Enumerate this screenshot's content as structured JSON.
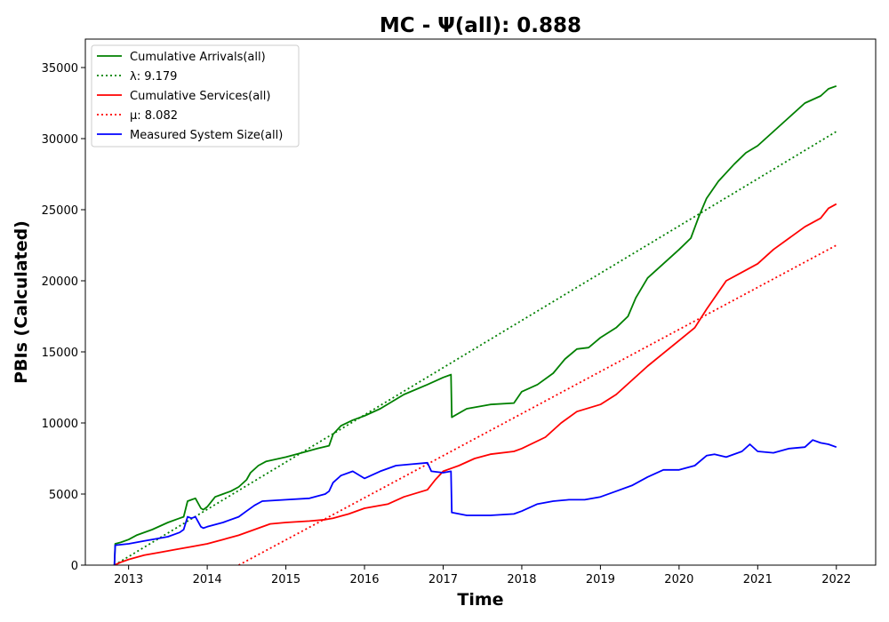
{
  "chart_data": {
    "type": "line",
    "title": "MC -  Ψ(all): 0.888",
    "xlabel": "Time",
    "ylabel": "PBIs (Calculated)",
    "xlim": [
      2012.45,
      2022.5
    ],
    "ylim": [
      0,
      37000
    ],
    "x_ticks": [
      2013,
      2014,
      2015,
      2016,
      2017,
      2018,
      2019,
      2020,
      2021,
      2022
    ],
    "x_tick_labels": [
      "2013",
      "2014",
      "2015",
      "2016",
      "2017",
      "2018",
      "2019",
      "2020",
      "2021",
      "2022"
    ],
    "y_ticks": [
      0,
      5000,
      10000,
      15000,
      20000,
      25000,
      30000,
      35000
    ],
    "y_tick_labels": [
      "0",
      "5000",
      "10000",
      "15000",
      "20000",
      "25000",
      "30000",
      "35000"
    ],
    "legend_position": "top-left",
    "grid": false,
    "series": [
      {
        "name": "Cumulative Arrivals(all)",
        "color": "#008000",
        "style": "solid",
        "x": [
          2012.82,
          2012.83,
          2012.9,
          2013.0,
          2013.1,
          2013.3,
          2013.5,
          2013.65,
          2013.7,
          2013.75,
          2013.8,
          2013.85,
          2013.92,
          2013.95,
          2014.0,
          2014.1,
          2014.2,
          2014.3,
          2014.4,
          2014.5,
          2014.55,
          2014.65,
          2014.75,
          2015.0,
          2015.2,
          2015.4,
          2015.55,
          2015.6,
          2015.7,
          2015.85,
          2016.0,
          2016.2,
          2016.35,
          2016.5,
          2016.8,
          2017.0,
          2017.1,
          2017.11,
          2017.3,
          2017.6,
          2017.9,
          2018.0,
          2018.2,
          2018.4,
          2018.55,
          2018.7,
          2018.85,
          2019.0,
          2019.2,
          2019.35,
          2019.45,
          2019.6,
          2019.8,
          2020.0,
          2020.15,
          2020.25,
          2020.35,
          2020.5,
          2020.7,
          2020.85,
          2021.0,
          2021.2,
          2021.4,
          2021.6,
          2021.8,
          2021.9,
          2022.0
        ],
        "y": [
          0,
          1500,
          1600,
          1800,
          2100,
          2500,
          3000,
          3300,
          3400,
          4500,
          4600,
          4700,
          4000,
          3900,
          4100,
          4800,
          5000,
          5200,
          5500,
          6000,
          6500,
          7000,
          7300,
          7600,
          7900,
          8200,
          8400,
          9200,
          9800,
          10200,
          10500,
          11000,
          11500,
          12000,
          12700,
          13200,
          13400,
          10400,
          11000,
          11300,
          11400,
          12200,
          12700,
          13500,
          14500,
          15200,
          15300,
          16000,
          16700,
          17500,
          18800,
          20200,
          21200,
          22200,
          23000,
          24500,
          25800,
          27000,
          28200,
          29000,
          29500,
          30500,
          31500,
          32500,
          33000,
          33500,
          33700
        ]
      },
      {
        "name": "λ: 9.179",
        "color": "#008000",
        "style": "dotted",
        "x": [
          2012.82,
          2022.0
        ],
        "y": [
          0,
          30500
        ]
      },
      {
        "name": "Cumulative Services(all)",
        "color": "#ff0000",
        "style": "solid",
        "x": [
          2012.82,
          2012.9,
          2013.0,
          2013.2,
          2013.4,
          2013.6,
          2013.8,
          2014.0,
          2014.2,
          2014.4,
          2014.6,
          2014.8,
          2015.0,
          2015.3,
          2015.5,
          2015.6,
          2015.8,
          2016.0,
          2016.3,
          2016.5,
          2016.8,
          2016.9,
          2017.0,
          2017.2,
          2017.4,
          2017.6,
          2017.9,
          2018.0,
          2018.3,
          2018.5,
          2018.7,
          2019.0,
          2019.2,
          2019.4,
          2019.6,
          2019.8,
          2020.0,
          2020.2,
          2020.35,
          2020.5,
          2020.6,
          2020.8,
          2021.0,
          2021.2,
          2021.4,
          2021.6,
          2021.8,
          2021.9,
          2022.0
        ],
        "y": [
          0,
          200,
          400,
          700,
          900,
          1100,
          1300,
          1500,
          1800,
          2100,
          2500,
          2900,
          3000,
          3100,
          3200,
          3300,
          3600,
          4000,
          4300,
          4800,
          5300,
          6000,
          6600,
          7000,
          7500,
          7800,
          8000,
          8200,
          9000,
          10000,
          10800,
          11300,
          12000,
          13000,
          14000,
          14900,
          15800,
          16700,
          18000,
          19200,
          20000,
          20600,
          21200,
          22200,
          23000,
          23800,
          24400,
          25100,
          25400
        ]
      },
      {
        "name": "μ: 8.082",
        "color": "#ff0000",
        "style": "dotted",
        "x": [
          2014.4,
          2022.0
        ],
        "y": [
          0,
          22500
        ]
      },
      {
        "name": "Measured System Size(all)",
        "color": "#0000ff",
        "style": "solid",
        "x": [
          2012.82,
          2012.83,
          2013.0,
          2013.2,
          2013.4,
          2013.5,
          2013.6,
          2013.65,
          2013.7,
          2013.75,
          2013.8,
          2013.85,
          2013.92,
          2013.95,
          2014.0,
          2014.2,
          2014.4,
          2014.5,
          2014.6,
          2014.7,
          2015.0,
          2015.3,
          2015.5,
          2015.55,
          2015.6,
          2015.7,
          2015.85,
          2016.0,
          2016.2,
          2016.4,
          2016.6,
          2016.8,
          2016.85,
          2017.0,
          2017.1,
          2017.11,
          2017.3,
          2017.6,
          2017.9,
          2018.0,
          2018.2,
          2018.4,
          2018.6,
          2018.8,
          2019.0,
          2019.2,
          2019.4,
          2019.6,
          2019.8,
          2020.0,
          2020.2,
          2020.35,
          2020.45,
          2020.6,
          2020.8,
          2020.9,
          2021.0,
          2021.2,
          2021.4,
          2021.6,
          2021.7,
          2021.8,
          2021.9,
          2022.0
        ],
        "y": [
          0,
          1400,
          1500,
          1700,
          1900,
          2000,
          2200,
          2300,
          2500,
          3400,
          3300,
          3400,
          2700,
          2600,
          2700,
          3000,
          3400,
          3800,
          4200,
          4500,
          4600,
          4700,
          5000,
          5200,
          5800,
          6300,
          6600,
          6100,
          6600,
          7000,
          7100,
          7200,
          6600,
          6500,
          6600,
          3700,
          3500,
          3500,
          3600,
          3800,
          4300,
          4500,
          4600,
          4600,
          4800,
          5200,
          5600,
          6200,
          6700,
          6700,
          7000,
          7700,
          7800,
          7600,
          8000,
          8500,
          8000,
          7900,
          8200,
          8300,
          8800,
          8600,
          8500,
          8300
        ]
      }
    ]
  }
}
